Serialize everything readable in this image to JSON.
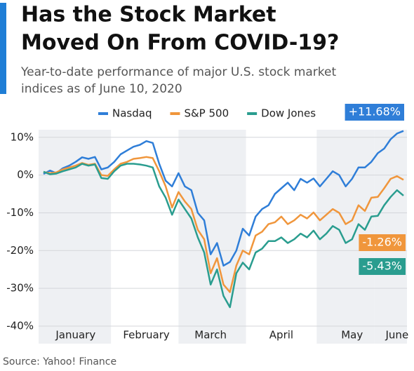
{
  "chart_data": {
    "type": "line",
    "title_lines": [
      "Has the Stock Market",
      "Moved On From COVID-19?"
    ],
    "subtitle_lines": [
      "Year-to-date performance of major U.S. stock market",
      "indices as of June 10, 2020"
    ],
    "source": "Source: Yahoo! Finance",
    "categories": [
      null,
      null,
      null,
      null,
      null,
      "January",
      null,
      null,
      null,
      null,
      null,
      null,
      null,
      null,
      null,
      null,
      "February",
      null,
      null,
      null,
      null,
      null,
      null,
      null,
      null,
      null,
      "March",
      null,
      null,
      null,
      null,
      null,
      null,
      null,
      null,
      null,
      null,
      "April",
      null,
      null,
      null,
      null,
      null,
      null,
      null,
      null,
      null,
      null,
      "May",
      null,
      null,
      null,
      null,
      null,
      null,
      "June",
      null
    ],
    "series": [
      {
        "name": "Nasdaq",
        "color": "#2f7ed8",
        "values": [
          0.3,
          1.2,
          0.5,
          1.8,
          2.5,
          3.5,
          4.7,
          4.3,
          4.8,
          1.5,
          2.0,
          3.5,
          5.5,
          6.5,
          7.5,
          8,
          9,
          8.5,
          3,
          -1.5,
          -3,
          0.5,
          -3,
          -4,
          -10,
          -12,
          -21,
          -18,
          -24,
          -23,
          -20,
          -14.2,
          -16,
          -11,
          -9,
          -8,
          -5,
          -3.5,
          -2,
          -4,
          -1,
          -2,
          -0.9,
          -3,
          -1,
          1,
          0,
          -3,
          -1,
          2,
          2,
          3.5,
          5.8,
          7,
          9.5,
          11,
          11.68
        ],
        "value_labels": [
          null,
          null,
          null,
          null,
          null,
          null,
          null,
          null,
          null,
          null,
          null,
          null,
          null,
          null,
          null,
          null,
          null,
          null,
          null,
          null,
          null,
          null,
          null,
          null,
          null,
          null,
          null,
          null,
          null,
          null,
          null,
          null,
          null,
          null,
          null,
          null,
          null,
          null,
          null,
          null,
          null,
          null,
          null,
          null,
          null,
          null,
          null,
          null,
          null,
          null,
          null,
          null,
          null,
          null,
          null,
          null,
          "+11.68%"
        ]
      },
      {
        "name": "S&P 500",
        "color": "#f0963c",
        "values": [
          0.8,
          0.5,
          0.7,
          1.5,
          2,
          2.5,
          3.2,
          2.7,
          3,
          0,
          -0.2,
          1.5,
          3,
          3.5,
          4.3,
          4.5,
          4.8,
          4.5,
          1,
          -3,
          -8.6,
          -4.5,
          -7,
          -9,
          -14.5,
          -17,
          -26,
          -22,
          -29,
          -31,
          -24,
          -20,
          -21,
          -16,
          -15,
          -13,
          -12.5,
          -11,
          -13,
          -12,
          -10.5,
          -11.5,
          -9.9,
          -12,
          -10.5,
          -9,
          -10,
          -13,
          -12,
          -8,
          -9.5,
          -6,
          -5.8,
          -3.5,
          -1,
          -0.3,
          -1.26
        ],
        "value_labels": [
          null,
          null,
          null,
          null,
          null,
          null,
          null,
          null,
          null,
          null,
          null,
          null,
          null,
          null,
          null,
          null,
          null,
          null,
          null,
          null,
          null,
          null,
          null,
          null,
          null,
          null,
          null,
          null,
          null,
          null,
          null,
          null,
          null,
          null,
          null,
          null,
          null,
          null,
          null,
          null,
          null,
          null,
          null,
          null,
          null,
          null,
          null,
          null,
          null,
          null,
          null,
          null,
          null,
          null,
          null,
          null,
          "-1.26%"
        ]
      },
      {
        "name": "Dow Jones",
        "color": "#2a9d8f",
        "values": [
          0.9,
          0.2,
          0.4,
          1,
          1.5,
          2,
          3,
          2.5,
          2.8,
          -0.8,
          -1,
          1,
          2.5,
          3,
          3,
          2.8,
          2.5,
          2,
          -3,
          -6,
          -10.5,
          -6.5,
          -9,
          -11.5,
          -16.5,
          -20.5,
          -29,
          -25,
          -32,
          -35,
          -26,
          -23.2,
          -25,
          -20.5,
          -19.5,
          -17.5,
          -17.5,
          -16.5,
          -18,
          -17,
          -15.5,
          -16.5,
          -14.7,
          -17,
          -15.5,
          -13.5,
          -14.5,
          -18,
          -17,
          -13,
          -14.5,
          -11,
          -10.8,
          -8,
          -5.8,
          -4,
          -5.43
        ],
        "value_labels": [
          null,
          null,
          null,
          null,
          null,
          null,
          null,
          null,
          null,
          null,
          null,
          null,
          null,
          null,
          null,
          null,
          null,
          null,
          null,
          null,
          null,
          null,
          null,
          null,
          null,
          null,
          null,
          null,
          null,
          null,
          null,
          null,
          null,
          null,
          null,
          null,
          null,
          null,
          null,
          null,
          null,
          null,
          null,
          null,
          null,
          null,
          null,
          null,
          null,
          null,
          null,
          null,
          null,
          null,
          null,
          null,
          "-5.43%"
        ]
      }
    ],
    "ylim": [
      -40,
      12
    ],
    "yticks": [
      {
        "value": 10,
        "label": "10%"
      },
      {
        "value": 0,
        "label": "0%"
      },
      {
        "value": -10,
        "label": "-10%"
      },
      {
        "value": -20,
        "label": "-20%"
      },
      {
        "value": -30,
        "label": "-30%"
      },
      {
        "value": -40,
        "label": "-40%"
      }
    ],
    "grid": true,
    "legend": "top"
  }
}
